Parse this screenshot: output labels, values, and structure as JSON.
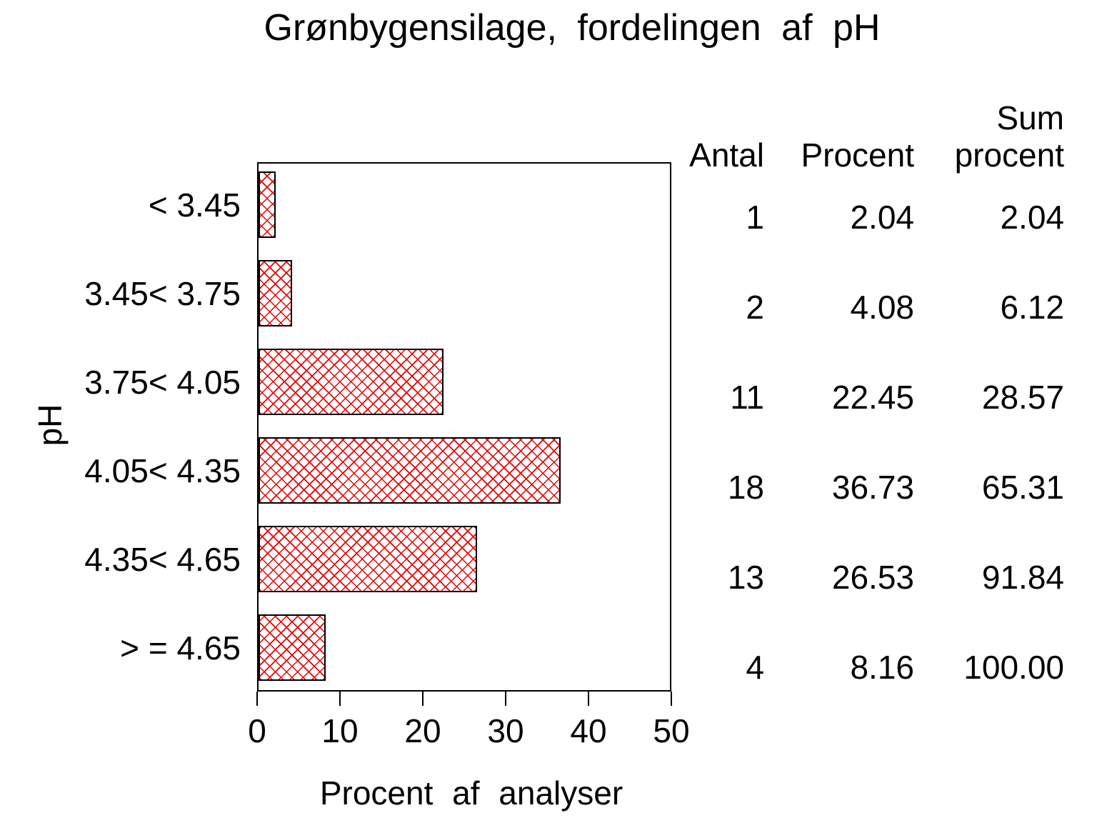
{
  "title": "Grønbygensilage, fordelingen af pH",
  "chart_data": {
    "type": "bar",
    "orientation": "horizontal",
    "title": "Grønbygensilage, fordelingen af pH",
    "categories": [
      "< 3.45",
      "3.45< 3.75",
      "3.75< 4.05",
      "4.05< 4.35",
      "4.35< 4.65",
      "> = 4.65"
    ],
    "values": [
      2.04,
      4.08,
      22.45,
      36.73,
      26.53,
      8.16
    ],
    "counts": [
      1,
      2,
      11,
      18,
      13,
      4
    ],
    "cum_percent": [
      2.04,
      6.12,
      28.57,
      65.31,
      91.84,
      100.0
    ],
    "xlabel": "Procent af analyser",
    "ylabel": "pH",
    "xlim": [
      0,
      50
    ],
    "xticks": [
      "0",
      "10",
      "20",
      "30",
      "40",
      "50"
    ],
    "grid": "off",
    "bar_fill_color": "#e60000",
    "bar_hatch": "crosshatch",
    "bar_border_color": "#000000"
  },
  "table": {
    "headers": {
      "antal": "Antal",
      "procent": "Procent",
      "sum_line1": "Sum",
      "sum_line2": "procent"
    },
    "rows": [
      {
        "antal": "1",
        "procent": "2.04",
        "sum": "2.04"
      },
      {
        "antal": "2",
        "procent": "4.08",
        "sum": "6.12"
      },
      {
        "antal": "11",
        "procent": "22.45",
        "sum": "28.57"
      },
      {
        "antal": "18",
        "procent": "36.73",
        "sum": "65.31"
      },
      {
        "antal": "13",
        "procent": "26.53",
        "sum": "91.84"
      },
      {
        "antal": "4",
        "procent": "8.16",
        "sum": "100.00"
      }
    ]
  }
}
